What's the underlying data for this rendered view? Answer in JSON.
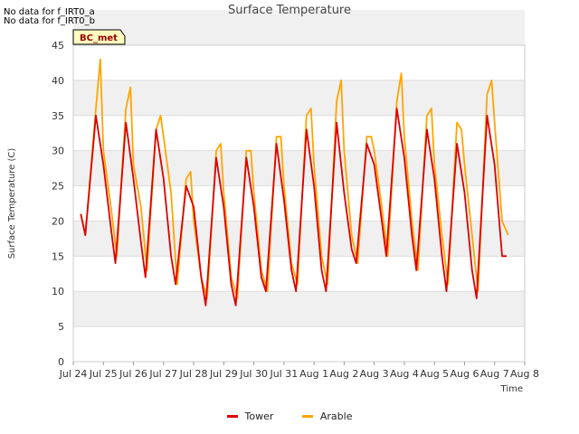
{
  "notes": [
    "No data for f_IRT0_a",
    "No data for f_IRT0_b"
  ],
  "badge": "BC_met",
  "colors": {
    "tower": "#dd0000",
    "arable": "#ffa500",
    "band": "#f0f0f0",
    "grid": "#dddddd",
    "badge_bg": "#ffffc0",
    "badge_text": "#990000"
  },
  "chart_data": {
    "type": "line",
    "title": "Surface Temperature",
    "xlabel": "Time",
    "ylabel": "Surface Temperature (C)",
    "ylim": [
      0,
      45
    ],
    "yticks": [
      0,
      5,
      10,
      15,
      20,
      25,
      30,
      35,
      40,
      45
    ],
    "xlim": [
      0,
      15
    ],
    "xticks": [
      "Jul 24",
      "Jul 25",
      "Jul 26",
      "Jul 27",
      "Jul 28",
      "Jul 29",
      "Jul 30",
      "Jul 31",
      "Aug 1",
      "Aug 2",
      "Aug 3",
      "Aug 4",
      "Aug 5",
      "Aug 6",
      "Aug 7",
      "Aug 8"
    ],
    "grid": true,
    "legend_position": "bottom-center",
    "series": [
      {
        "name": "Tower",
        "color": "#dd0000",
        "x": [
          0.25,
          0.4,
          0.75,
          1.0,
          1.25,
          1.4,
          1.75,
          2.0,
          2.25,
          2.4,
          2.75,
          3.0,
          3.25,
          3.4,
          3.75,
          4.0,
          4.25,
          4.4,
          4.75,
          5.0,
          5.25,
          5.4,
          5.75,
          6.0,
          6.25,
          6.4,
          6.75,
          7.0,
          7.25,
          7.4,
          7.75,
          8.0,
          8.25,
          8.4,
          8.75,
          9.0,
          9.25,
          9.4,
          9.75,
          10.0,
          10.25,
          10.4,
          10.75,
          11.0,
          11.25,
          11.4,
          11.75,
          12.0,
          12.25,
          12.4,
          12.75,
          13.0,
          13.25,
          13.4,
          13.75,
          14.0,
          14.25,
          14.4,
          14.75,
          14.85
        ],
        "y": [
          21,
          18,
          35,
          28,
          19,
          14,
          34,
          26,
          17,
          12,
          33,
          26,
          15,
          11,
          25,
          22,
          12,
          8,
          29,
          22,
          11,
          8,
          29,
          22,
          12,
          10,
          31,
          23,
          13,
          10,
          33,
          25,
          13,
          10,
          34,
          24,
          16,
          14,
          31,
          28,
          20,
          15,
          36,
          29,
          18,
          13,
          33,
          26,
          15,
          10,
          31,
          24,
          13,
          9,
          35,
          28,
          15,
          15,
          null,
          null
        ]
      },
      {
        "name": "Arable",
        "color": "#ffa500",
        "x": [
          0.25,
          0.4,
          0.75,
          0.9,
          1.0,
          1.25,
          1.45,
          1.75,
          1.9,
          2.0,
          2.25,
          2.45,
          2.75,
          2.9,
          3.0,
          3.25,
          3.45,
          3.75,
          3.9,
          4.0,
          4.25,
          4.45,
          4.75,
          4.9,
          5.0,
          5.25,
          5.45,
          5.75,
          5.9,
          6.0,
          6.25,
          6.45,
          6.75,
          6.9,
          7.0,
          7.25,
          7.45,
          7.75,
          7.9,
          8.0,
          8.25,
          8.45,
          8.75,
          8.9,
          9.0,
          9.25,
          9.45,
          9.75,
          9.9,
          10.0,
          10.25,
          10.45,
          10.75,
          10.9,
          11.0,
          11.25,
          11.45,
          11.75,
          11.9,
          12.0,
          12.25,
          12.45,
          12.75,
          12.9,
          13.0,
          13.25,
          13.45,
          13.75,
          13.9,
          14.0,
          14.25,
          14.45,
          14.8,
          14.9
        ],
        "y": [
          21,
          18,
          36,
          43,
          30,
          22,
          15,
          36,
          39,
          28,
          22,
          13,
          33,
          35,
          32,
          24,
          11,
          26,
          27,
          20,
          12,
          9,
          30,
          31,
          24,
          12,
          9,
          30,
          30,
          24,
          13,
          10,
          32,
          32,
          25,
          14,
          11,
          35,
          36,
          28,
          15,
          11,
          37,
          40,
          30,
          18,
          14,
          32,
          32,
          30,
          22,
          15,
          37,
          41,
          32,
          20,
          13,
          35,
          36,
          28,
          18,
          11,
          34,
          33,
          28,
          18,
          10,
          38,
          40,
          34,
          20,
          18,
          null,
          null
        ]
      }
    ]
  }
}
